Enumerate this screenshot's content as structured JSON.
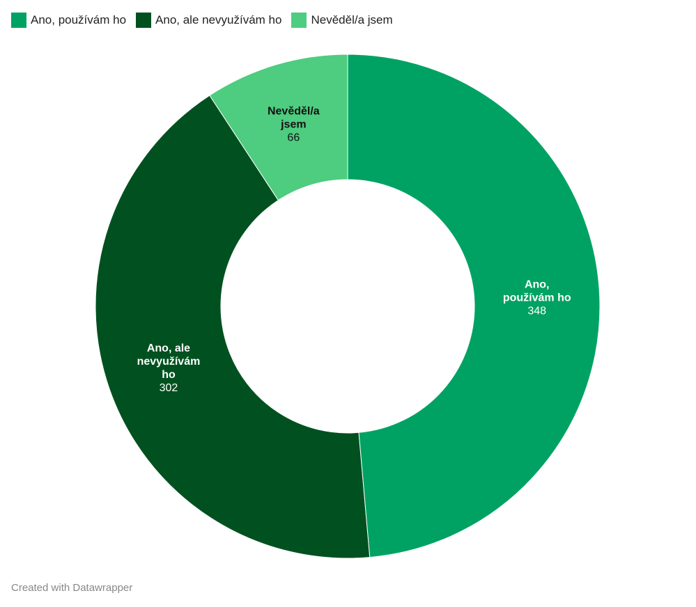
{
  "chart_data": {
    "type": "pie",
    "variant": "donut",
    "categories": [
      "Ano, používám ho",
      "Ano, ale nevyužívám ho",
      "Nevěděl/a jsem"
    ],
    "values": [
      348,
      302,
      66
    ],
    "colors": [
      "#00a263",
      "#00511f",
      "#4ecc80"
    ],
    "label_colors": [
      "#ffffff",
      "#ffffff",
      "#111111"
    ],
    "legend_position": "top-left"
  },
  "footer": "Created with Datawrapper"
}
